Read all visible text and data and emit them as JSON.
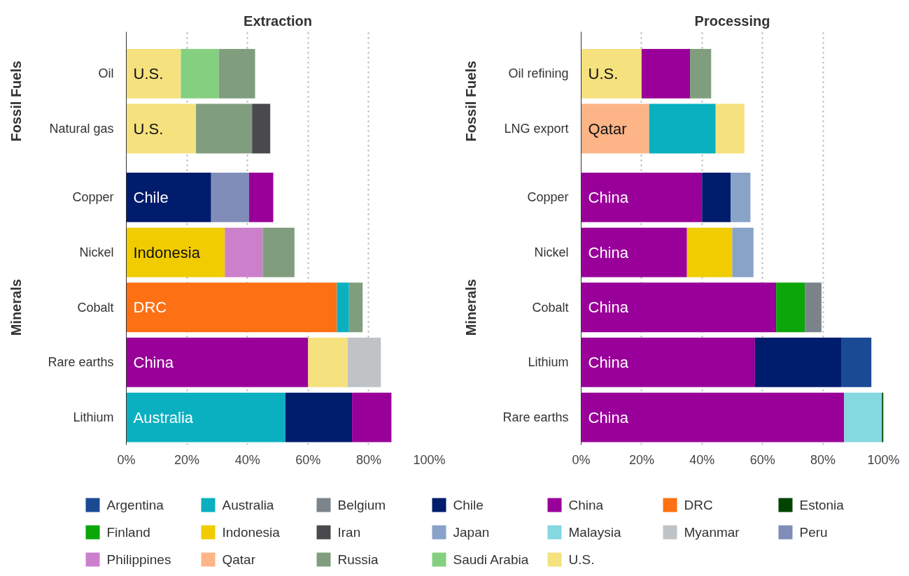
{
  "chart_data": [
    {
      "type": "bar",
      "orientation": "horizontal",
      "stacked": true,
      "title": "Extraction",
      "categories": [
        "Oil",
        "Natural gas",
        null,
        "Copper",
        "Nickel",
        "Cobalt",
        "Rare earths",
        "Lithium"
      ],
      "series": [
        {
          "name": "DRC",
          "color": "#fd7013",
          "values": [
            null,
            null,
            null,
            null,
            null,
            69.5,
            null,
            null
          ],
          "value_labels": [
            null,
            null,
            null,
            null,
            null,
            "DRC",
            null,
            null
          ]
        },
        {
          "name": "Australia",
          "color": "#0ab0bf",
          "values": [
            null,
            null,
            null,
            null,
            null,
            4,
            null,
            52.5
          ],
          "value_labels": [
            null,
            null,
            null,
            null,
            null,
            null,
            null,
            "Australia"
          ]
        },
        {
          "name": "Chile",
          "color": "#001c6c",
          "values": [
            null,
            null,
            null,
            28,
            null,
            null,
            null,
            22
          ],
          "value_labels": [
            null,
            null,
            null,
            "Chile",
            null,
            null,
            null,
            null
          ]
        },
        {
          "name": "Peru",
          "color": "#7f8db8",
          "values": [
            null,
            null,
            null,
            12.5,
            null,
            null,
            null,
            null
          ]
        },
        {
          "name": "China",
          "color": "#990099",
          "values": [
            null,
            null,
            null,
            8,
            null,
            null,
            60,
            13
          ],
          "value_labels": [
            null,
            null,
            null,
            null,
            null,
            null,
            "China",
            null
          ]
        },
        {
          "name": "U.S.",
          "color": "#f5e17e",
          "values": [
            18,
            23,
            null,
            null,
            null,
            null,
            13,
            null
          ],
          "value_labels": [
            "U.S.",
            "U.S.",
            null,
            null,
            null,
            null,
            null,
            null
          ]
        },
        {
          "name": "Myanmar",
          "color": "#bfc3c6",
          "values": [
            null,
            null,
            null,
            null,
            null,
            null,
            11,
            null
          ]
        },
        {
          "name": "Saudi Arabia",
          "color": "#84d080",
          "values": [
            12.5,
            null,
            null,
            null,
            null,
            null,
            null,
            null
          ]
        },
        {
          "name": "Indonesia",
          "color": "#f0cc00",
          "values": [
            null,
            null,
            null,
            null,
            32.5,
            null,
            null,
            null
          ],
          "value_labels": [
            null,
            null,
            null,
            null,
            "Indonesia",
            null,
            null,
            null
          ]
        },
        {
          "name": "Philippines",
          "color": "#cc80cc",
          "values": [
            null,
            null,
            null,
            null,
            12.5,
            null,
            null,
            null
          ]
        },
        {
          "name": "Russia",
          "color": "#809e7e",
          "values": [
            12,
            18.5,
            null,
            null,
            10.5,
            4.5,
            null,
            null
          ]
        },
        {
          "name": "Iran",
          "color": "#4a4a4e",
          "values": [
            null,
            6,
            null,
            null,
            null,
            null,
            null,
            null
          ]
        }
      ],
      "xlim": [
        0,
        100
      ],
      "xticks": [
        {
          "value": 0,
          "label": "0%"
        },
        {
          "value": 20,
          "label": "20%"
        },
        {
          "value": 40,
          "label": "40%"
        },
        {
          "value": 60,
          "label": "60%"
        },
        {
          "value": 80,
          "label": "80%"
        },
        {
          "value": 100,
          "label": "100%"
        }
      ],
      "grid": "x",
      "legend": "bottom",
      "annotations": [
        "Fossil Fuels",
        "Minerals"
      ]
    },
    {
      "type": "bar",
      "orientation": "horizontal",
      "stacked": true,
      "title": "Processing",
      "categories": [
        "Oil refining",
        "LNG export",
        null,
        "Copper",
        "Nickel",
        "Cobalt",
        "Lithium",
        "Rare earths"
      ],
      "series": [
        {
          "name": "Qatar",
          "color": "#fdb587",
          "values": [
            null,
            22.5,
            null,
            null,
            null,
            null,
            null,
            null
          ],
          "value_labels": [
            null,
            "Qatar",
            null,
            null,
            null,
            null,
            null,
            null
          ]
        },
        {
          "color": "#0ab0bf",
          "values": [
            null,
            22,
            null,
            null,
            null,
            null,
            null,
            null
          ]
        },
        {
          "color": "#f5e17e",
          "values": [
            20,
            9.5,
            null,
            null,
            null,
            null,
            null,
            null
          ],
          "value_labels": [
            "U.S.",
            null,
            null,
            null,
            null,
            null,
            null,
            null
          ]
        },
        {
          "color": "#990099",
          "values": [
            16,
            null,
            null,
            40,
            35,
            64.5,
            57.5,
            87
          ],
          "value_labels": [
            null,
            null,
            null,
            "China",
            "China",
            "China",
            "China",
            "China"
          ]
        },
        {
          "color": "#809e7e",
          "values": [
            7,
            null,
            null,
            null,
            null,
            null,
            null,
            null
          ]
        },
        {
          "color": "#001c6c",
          "values": [
            null,
            null,
            null,
            9.5,
            null,
            null,
            28.5,
            null
          ]
        },
        {
          "color": "#f0cc00",
          "values": [
            null,
            null,
            null,
            null,
            15,
            null,
            null,
            null
          ]
        },
        {
          "name": "Japan",
          "color": "#88a2c8",
          "values": [
            null,
            null,
            null,
            6.5,
            7,
            null,
            null,
            null
          ]
        },
        {
          "name": "Finland",
          "color": "#0aa60a",
          "values": [
            null,
            null,
            null,
            null,
            null,
            9.5,
            null,
            null
          ]
        },
        {
          "name": "Belgium",
          "color": "#7b838b",
          "values": [
            null,
            null,
            null,
            null,
            null,
            5.5,
            null,
            null
          ]
        },
        {
          "name": "Argentina",
          "color": "#1a4a94",
          "values": [
            null,
            null,
            null,
            null,
            null,
            null,
            10,
            null
          ]
        },
        {
          "name": "Malaysia",
          "color": "#84d8e0",
          "values": [
            null,
            null,
            null,
            null,
            null,
            null,
            null,
            12.5
          ]
        },
        {
          "name": "Estonia",
          "color": "#004400",
          "values": [
            null,
            null,
            null,
            null,
            null,
            null,
            null,
            0.5
          ]
        }
      ],
      "xlim": [
        0,
        100
      ],
      "xticks": [
        {
          "value": 0,
          "label": "0%"
        },
        {
          "value": 20,
          "label": "20%"
        },
        {
          "value": 40,
          "label": "40%"
        },
        {
          "value": 60,
          "label": "60%"
        },
        {
          "value": 80,
          "label": "80%"
        },
        {
          "value": 100,
          "label": "100%"
        }
      ],
      "grid": "x",
      "legend": "bottom",
      "annotations": [
        "Fossil Fuels",
        "Minerals"
      ]
    }
  ]
}
